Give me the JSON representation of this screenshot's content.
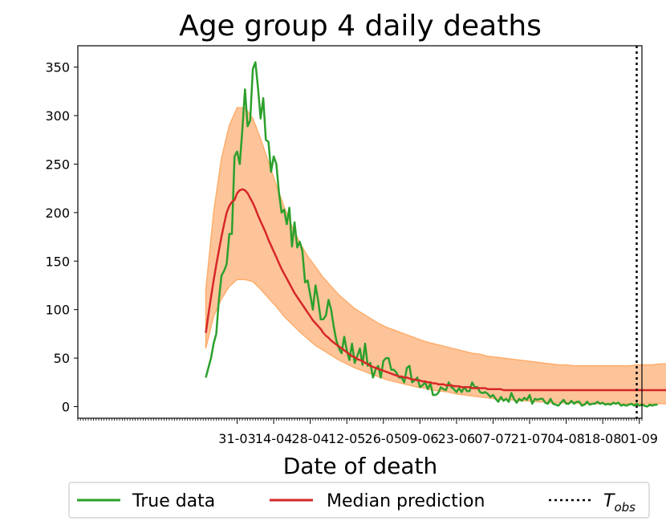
{
  "chart_data": {
    "type": "line",
    "title": "Age group 4 daily deaths",
    "xlabel": "Date of death",
    "ylabel": "",
    "ylim": [
      -12,
      372
    ],
    "day_range": [
      -31,
      185
    ],
    "y_ticks": [
      0,
      50,
      100,
      150,
      200,
      250,
      300,
      350
    ],
    "x_ticks": [
      {
        "day": 30,
        "label": "31-03"
      },
      {
        "day": 44,
        "label": "14-04"
      },
      {
        "day": 58,
        "label": "28-04"
      },
      {
        "day": 72,
        "label": "12-05"
      },
      {
        "day": 86,
        "label": "26-05"
      },
      {
        "day": 100,
        "label": "09-06"
      },
      {
        "day": 114,
        "label": "23-06"
      },
      {
        "day": 128,
        "label": "07-07"
      },
      {
        "day": 142,
        "label": "21-07"
      },
      {
        "day": 156,
        "label": "04-08"
      },
      {
        "day": 170,
        "label": "18-08"
      },
      {
        "day": 184,
        "label": "01-09"
      }
    ],
    "t_obs_day": 183,
    "series": [
      {
        "name": "True data",
        "color": "#2ca02c",
        "start_day": 18,
        "values": [
          30,
          40,
          50,
          65,
          75,
          110,
          135,
          140,
          147,
          178,
          178,
          258,
          263,
          250,
          285,
          327,
          289,
          295,
          348,
          355,
          328,
          297,
          318,
          275,
          273,
          242,
          258,
          250,
          221,
          200,
          203,
          188,
          205,
          165,
          190,
          164,
          170,
          160,
          128,
          130,
          115,
          100,
          125,
          110,
          90,
          90,
          94,
          110,
          100,
          82,
          68,
          60,
          55,
          72,
          58,
          48,
          65,
          45,
          52,
          60,
          43,
          65,
          42,
          45,
          30,
          38,
          42,
          30,
          47,
          50,
          50,
          38,
          38,
          35,
          30,
          30,
          25,
          40,
          42,
          25,
          27,
          30,
          20,
          22,
          25,
          18,
          24,
          12,
          12,
          14,
          20,
          18,
          17,
          25,
          20,
          18,
          15,
          19,
          15,
          20,
          16,
          16,
          25,
          20,
          20,
          15,
          14,
          15,
          13,
          10,
          12,
          8,
          5,
          10,
          6,
          8,
          5,
          14,
          8,
          4,
          8,
          6,
          9,
          7,
          12,
          3,
          8,
          7,
          8,
          8,
          4,
          3,
          8,
          3,
          2,
          1,
          4,
          7,
          3,
          3,
          6,
          3,
          5,
          5,
          1,
          2,
          5,
          2,
          3,
          3,
          5,
          3,
          4,
          2,
          3,
          2,
          4,
          3,
          4,
          1,
          2,
          1,
          2,
          3,
          1,
          3,
          1,
          2,
          1,
          0,
          2,
          1,
          2,
          2
        ]
      },
      {
        "name": "Median prediction",
        "color": "#d62728",
        "start_day": 18,
        "values": [
          76,
          95,
          113,
          130,
          146,
          161,
          175,
          188,
          200,
          207,
          211,
          213,
          220,
          223,
          224,
          223,
          220,
          215,
          210,
          204,
          197,
          191,
          185,
          179,
          172,
          166,
          160,
          154,
          148,
          142,
          137,
          132,
          127,
          122,
          117,
          113,
          109,
          105,
          101,
          97,
          93,
          89,
          86,
          83,
          80,
          76,
          73,
          71,
          68,
          66,
          64,
          62,
          60,
          58,
          56,
          54,
          52,
          51,
          49,
          48,
          47,
          45,
          44,
          42,
          41,
          40,
          39,
          38,
          37,
          36,
          35,
          34,
          33,
          32,
          31,
          31,
          30,
          30,
          29,
          28,
          28,
          27,
          27,
          26,
          26,
          25,
          25,
          24,
          24,
          23,
          23,
          23,
          22,
          22,
          22,
          21,
          21,
          21,
          20,
          20,
          20,
          20,
          19,
          19,
          19,
          19,
          19,
          19,
          18,
          18,
          18,
          18,
          18,
          18,
          17,
          17,
          17,
          17,
          17,
          17,
          17,
          17,
          17,
          17,
          17,
          17,
          17,
          17,
          17,
          17,
          17,
          17,
          17,
          17,
          17,
          17,
          17,
          17,
          17,
          17,
          17,
          17,
          17,
          17,
          17,
          17,
          17,
          17,
          17,
          17,
          17,
          17,
          17,
          17,
          17,
          17,
          17,
          17,
          17,
          17,
          17,
          17,
          17,
          17,
          17,
          17,
          17,
          17,
          17,
          17,
          17,
          17,
          17,
          17,
          17,
          17,
          17,
          17
        ]
      }
    ],
    "band": {
      "name": "Prediction interval",
      "color": "#fdc49a",
      "edge_color": "#fdae6b",
      "start_day": 18,
      "step": 3,
      "upper": [
        120,
        200,
        256,
        290,
        308,
        308,
        297,
        276,
        252,
        228,
        206,
        186,
        169,
        155,
        144,
        133,
        124,
        115,
        108,
        101,
        96,
        91,
        86,
        82,
        79,
        76,
        73,
        70,
        67,
        65,
        63,
        61,
        59,
        57,
        55,
        54,
        52,
        51,
        50,
        49,
        48,
        47,
        46,
        45,
        44,
        43,
        43,
        42,
        42,
        42,
        42,
        42,
        42,
        42,
        42,
        43,
        43,
        43,
        44,
        44,
        45,
        46
      ],
      "lower": [
        60,
        93,
        111,
        124,
        131,
        131,
        129,
        121,
        112,
        103,
        93,
        85,
        77,
        70,
        63,
        58,
        53,
        48,
        44,
        40,
        37,
        34,
        31,
        28,
        26,
        24,
        22,
        20,
        19,
        17,
        16,
        15,
        13,
        12,
        11,
        10,
        9,
        8,
        7,
        7,
        6,
        6,
        5,
        5,
        4,
        4,
        4,
        4,
        3,
        3,
        3,
        3,
        3,
        3,
        3,
        3,
        3,
        3,
        3,
        3,
        3,
        3
      ]
    },
    "legend": {
      "position": "below",
      "entries": [
        {
          "label": "True data",
          "color": "#2ca02c",
          "style": "solid"
        },
        {
          "label": "Median prediction",
          "color": "#d62728",
          "style": "solid"
        },
        {
          "label": "T",
          "sub": "obs",
          "color": "#000000",
          "style": "dotted"
        }
      ]
    }
  }
}
